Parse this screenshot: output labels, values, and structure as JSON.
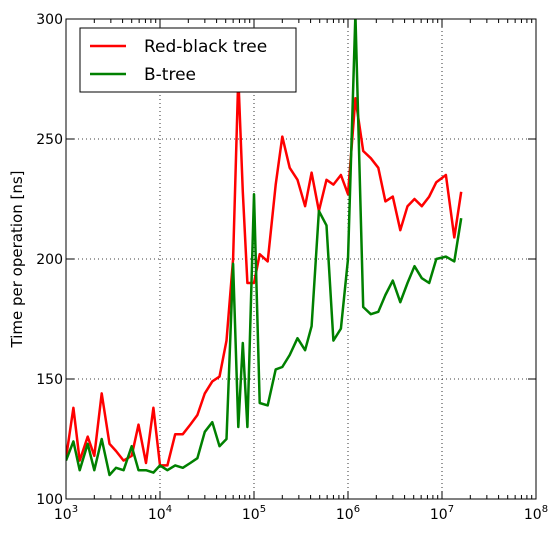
{
  "chart_data": {
    "type": "line",
    "title": "",
    "xlabel": "",
    "ylabel": "Time per operation [ns]",
    "xscale": "log",
    "xlim": [
      1000,
      100000000
    ],
    "ylim": [
      100,
      300
    ],
    "grid": true,
    "legend_position": "top-left",
    "x_ticks": [
      {
        "base": "10",
        "exp": "3"
      },
      {
        "base": "10",
        "exp": "4"
      },
      {
        "base": "10",
        "exp": "5"
      },
      {
        "base": "10",
        "exp": "6"
      },
      {
        "base": "10",
        "exp": "7"
      },
      {
        "base": "10",
        "exp": "8"
      }
    ],
    "y_ticks": [
      "100",
      "150",
      "200",
      "250",
      "300"
    ],
    "series": [
      {
        "name": "Red-black tree",
        "color": "#ff0000",
        "x": [
          1000,
          1200,
          1400,
          1700,
          2000,
          2400,
          2900,
          3400,
          4100,
          5000,
          5900,
          7100,
          8500,
          10000,
          12000,
          14500,
          17500,
          21000,
          25000,
          30000,
          36000,
          43000,
          51000,
          60000,
          68000,
          76000,
          85000,
          100000,
          115000,
          140000,
          170000,
          200000,
          240000,
          290000,
          350000,
          410000,
          490000,
          590000,
          700000,
          840000,
          1000000,
          1200000,
          1450000,
          1750000,
          2100000,
          2500000,
          3000000,
          3600000,
          4300000,
          5100000,
          6100000,
          7300000,
          8700000,
          11000000,
          13500000,
          16000000
        ],
        "y": [
          117,
          138,
          116,
          126,
          118,
          144,
          123,
          120,
          116,
          118,
          131,
          115,
          138,
          114,
          114,
          127,
          127,
          131,
          135,
          144,
          149,
          151,
          166,
          200,
          276,
          228,
          190,
          190,
          202,
          199,
          231,
          251,
          238,
          233,
          222,
          236,
          220,
          233,
          231,
          235,
          227,
          267,
          245,
          242,
          238,
          224,
          226,
          212,
          222,
          225,
          222,
          226,
          232,
          235,
          209,
          228
        ]
      },
      {
        "name": "B-tree",
        "color": "#008000",
        "x": [
          1000,
          1200,
          1400,
          1700,
          2000,
          2400,
          2900,
          3400,
          4100,
          5000,
          5900,
          7100,
          8500,
          10000,
          12000,
          14500,
          17500,
          21000,
          25000,
          30000,
          36000,
          43000,
          51000,
          60000,
          68000,
          76000,
          85000,
          100000,
          115000,
          140000,
          170000,
          200000,
          240000,
          290000,
          350000,
          410000,
          490000,
          590000,
          700000,
          840000,
          1000000,
          1200000,
          1450000,
          1750000,
          2100000,
          2500000,
          3000000,
          3600000,
          4300000,
          5100000,
          6100000,
          7300000,
          8700000,
          11000000,
          13500000,
          16000000
        ],
        "y": [
          116,
          124,
          112,
          123,
          112,
          125,
          110,
          113,
          112,
          122,
          112,
          112,
          111,
          114,
          112,
          114,
          113,
          115,
          117,
          128,
          132,
          122,
          125,
          198,
          130,
          165,
          130,
          227,
          140,
          139,
          154,
          155,
          160,
          167,
          162,
          172,
          220,
          214,
          166,
          171,
          200,
          302,
          180,
          177,
          178,
          185,
          191,
          182,
          190,
          197,
          192,
          190,
          200,
          201,
          199,
          217
        ]
      }
    ]
  }
}
